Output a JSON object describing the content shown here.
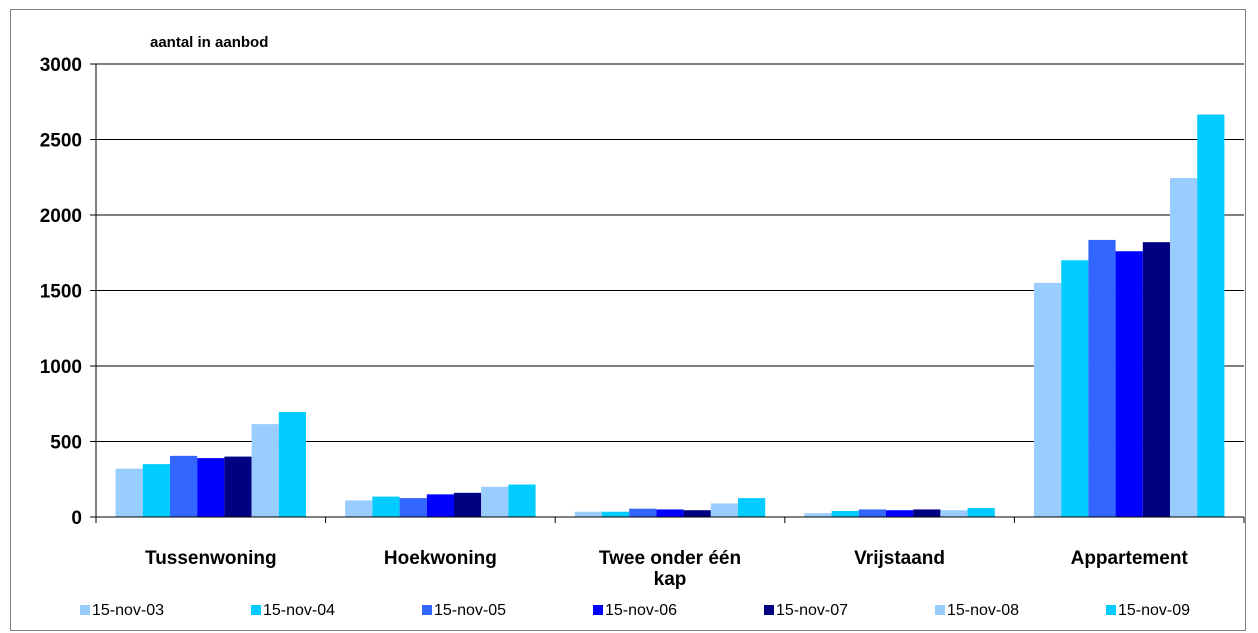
{
  "chart_data": {
    "type": "bar",
    "ylabel": "aantal in aanbod",
    "ylim": [
      0,
      3000
    ],
    "yticks": [
      0,
      500,
      1000,
      1500,
      2000,
      2500,
      3000
    ],
    "grid": true,
    "legend_position": "bottom",
    "categories": [
      "Tussenwoning",
      "Hoekwoning",
      "Twee onder één kap",
      "Vrijstaand",
      "Appartement"
    ],
    "series": [
      {
        "name": "15-nov-03",
        "color": "#99CCFF",
        "values": [
          320,
          110,
          35,
          25,
          1550
        ]
      },
      {
        "name": "15-nov-04",
        "color": "#00CCFF",
        "values": [
          350,
          135,
          35,
          40,
          1700
        ]
      },
      {
        "name": "15-nov-05",
        "color": "#3366FF",
        "values": [
          405,
          125,
          55,
          50,
          1835
        ]
      },
      {
        "name": "15-nov-06",
        "color": "#0000FF",
        "values": [
          390,
          150,
          50,
          45,
          1760
        ]
      },
      {
        "name": "15-nov-07",
        "color": "#000080",
        "values": [
          400,
          160,
          45,
          50,
          1820
        ]
      },
      {
        "name": "15-nov-08",
        "color": "#99CCFF",
        "values": [
          615,
          200,
          90,
          45,
          2245
        ]
      },
      {
        "name": "15-nov-09",
        "color": "#00CCFF",
        "values": [
          695,
          215,
          125,
          60,
          2665
        ]
      }
    ]
  }
}
